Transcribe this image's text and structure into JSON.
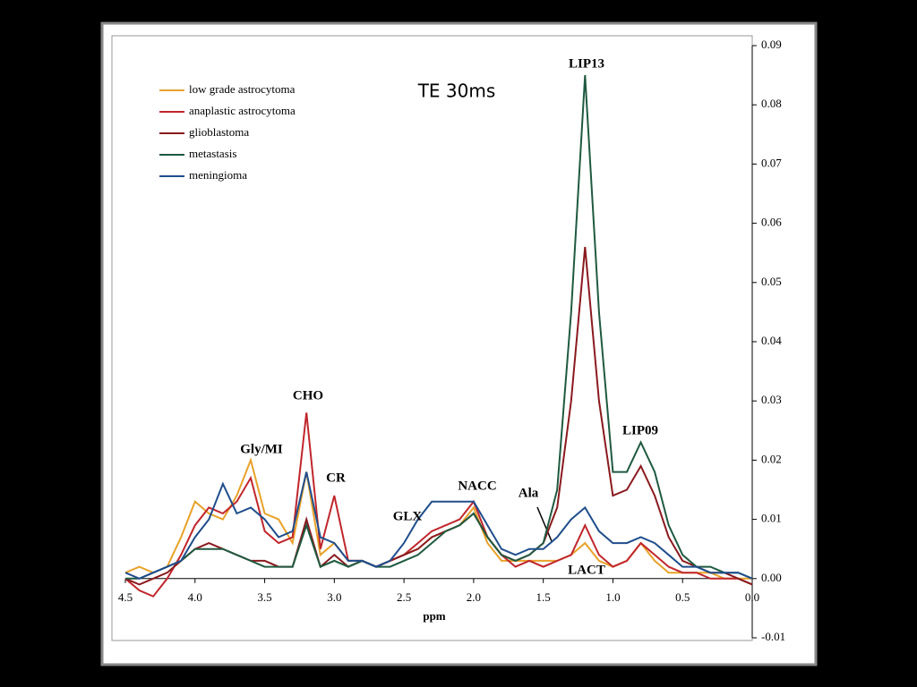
{
  "chart_data": {
    "type": "line",
    "title": "TE 30ms",
    "x_label": "ppm",
    "x": [
      4.5,
      4.4,
      4.3,
      4.2,
      4.1,
      4.0,
      3.9,
      3.8,
      3.7,
      3.6,
      3.5,
      3.4,
      3.3,
      3.2,
      3.1,
      3.0,
      2.9,
      2.8,
      2.7,
      2.6,
      2.5,
      2.4,
      2.3,
      2.2,
      2.1,
      2.0,
      1.9,
      1.8,
      1.7,
      1.6,
      1.5,
      1.4,
      1.3,
      1.2,
      1.1,
      1.0,
      0.9,
      0.8,
      0.7,
      0.6,
      0.5,
      0.4,
      0.3,
      0.2,
      0.1,
      0.0
    ],
    "series": [
      {
        "name": "low grade astrocytoma",
        "color": "#e8a22a",
        "values": [
          0.001,
          0.002,
          0.001,
          0.002,
          0.007,
          0.013,
          0.011,
          0.01,
          0.014,
          0.02,
          0.011,
          0.01,
          0.006,
          0.018,
          0.004,
          0.006,
          0.003,
          0.003,
          0.002,
          0.003,
          0.004,
          0.005,
          0.007,
          0.008,
          0.009,
          0.012,
          0.006,
          0.003,
          0.003,
          0.003,
          0.003,
          0.003,
          0.004,
          0.006,
          0.003,
          0.002,
          0.003,
          0.006,
          0.003,
          0.001,
          0.001,
          0.001,
          0.001,
          0.0,
          0.0,
          0.0
        ]
      },
      {
        "name": "anaplastic astrocytoma",
        "color": "#c0262c",
        "values": [
          0.0,
          -0.002,
          -0.003,
          0.0,
          0.004,
          0.009,
          0.012,
          0.011,
          0.013,
          0.017,
          0.008,
          0.006,
          0.007,
          0.028,
          0.005,
          0.014,
          0.003,
          0.003,
          0.002,
          0.003,
          0.004,
          0.006,
          0.008,
          0.009,
          0.01,
          0.013,
          0.007,
          0.004,
          0.002,
          0.003,
          0.002,
          0.003,
          0.004,
          0.009,
          0.004,
          0.002,
          0.003,
          0.006,
          0.004,
          0.002,
          0.001,
          0.001,
          0.0,
          0.0,
          0.0,
          -0.001
        ]
      },
      {
        "name": "glioblastoma",
        "color": "#8a1a1e",
        "values": [
          0.0,
          -0.001,
          0.0,
          0.001,
          0.003,
          0.005,
          0.006,
          0.005,
          0.004,
          0.003,
          0.003,
          0.002,
          0.002,
          0.01,
          0.002,
          0.004,
          0.002,
          0.003,
          0.002,
          0.003,
          0.004,
          0.005,
          0.007,
          0.008,
          0.009,
          0.011,
          0.007,
          0.004,
          0.003,
          0.004,
          0.006,
          0.012,
          0.03,
          0.056,
          0.03,
          0.014,
          0.015,
          0.019,
          0.014,
          0.007,
          0.003,
          0.002,
          0.001,
          0.001,
          0.0,
          -0.001
        ]
      },
      {
        "name": "metastasis",
        "color": "#1f5a40",
        "values": [
          0.0,
          0.0,
          0.001,
          0.002,
          0.003,
          0.005,
          0.005,
          0.005,
          0.004,
          0.003,
          0.002,
          0.002,
          0.002,
          0.009,
          0.002,
          0.003,
          0.002,
          0.003,
          0.002,
          0.002,
          0.003,
          0.004,
          0.006,
          0.008,
          0.009,
          0.011,
          0.007,
          0.004,
          0.003,
          0.004,
          0.006,
          0.015,
          0.045,
          0.085,
          0.045,
          0.018,
          0.018,
          0.023,
          0.018,
          0.009,
          0.004,
          0.002,
          0.002,
          0.001,
          0.001,
          0.0
        ]
      },
      {
        "name": "meningioma",
        "color": "#1f4e8c",
        "values": [
          0.001,
          0.0,
          0.001,
          0.002,
          0.003,
          0.007,
          0.01,
          0.016,
          0.011,
          0.012,
          0.01,
          0.007,
          0.008,
          0.018,
          0.007,
          0.006,
          0.003,
          0.003,
          0.002,
          0.003,
          0.006,
          0.01,
          0.013,
          0.013,
          0.013,
          0.013,
          0.009,
          0.005,
          0.004,
          0.005,
          0.005,
          0.007,
          0.01,
          0.012,
          0.008,
          0.006,
          0.006,
          0.007,
          0.006,
          0.004,
          0.002,
          0.002,
          0.001,
          0.001,
          0.001,
          0.0
        ]
      }
    ],
    "xlim": [
      4.5,
      0.0
    ],
    "xticks": [
      4.5,
      {
        "value": 4,
        "label": "4.0"
      },
      3.5,
      {
        "value": 3,
        "label": "3.0"
      },
      2.5,
      {
        "value": 2,
        "label": "2.0"
      },
      1.5,
      {
        "value": 1,
        "label": "1.0"
      },
      0.5,
      {
        "value": 0,
        "label": "0.0"
      }
    ],
    "ylim": [
      -0.01,
      0.09
    ],
    "yticks": [
      -0.01,
      {
        "value": 0,
        "label": "0.00"
      },
      0.01,
      0.02,
      0.03,
      0.04,
      0.05,
      0.06,
      0.07,
      0.08,
      0.09
    ],
    "annotations": [
      "CHO",
      "Gly/MI",
      "CR",
      "GLX",
      "NACC",
      "Ala",
      "LIP13",
      "LIP09",
      "LACT"
    ],
    "legend": "top-left"
  }
}
